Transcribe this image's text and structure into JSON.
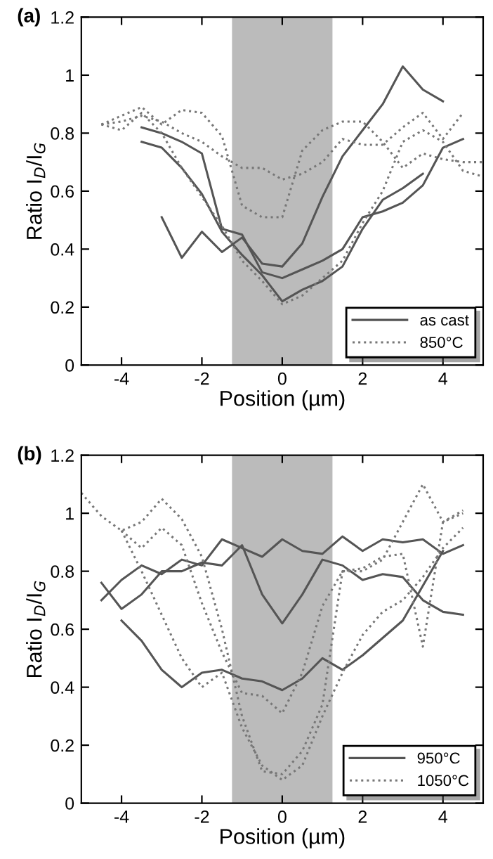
{
  "chart_data": [
    {
      "type": "line",
      "title": "(a)",
      "xlabel": "Position (µm)",
      "ylabel": "Ratio I$_{D}$/I$_{G}$",
      "xlim": [
        -5,
        5
      ],
      "ylim": [
        0,
        1.2
      ],
      "xticks": [
        -4,
        -2,
        0,
        2,
        4
      ],
      "yticks": [
        0,
        0.2,
        0.4,
        0.6,
        0.8,
        1,
        1.2
      ],
      "grid": false,
      "legend": "bottom right",
      "marker": "none",
      "bands": [
        {
          "axis": "x",
          "from": -1.25,
          "to": 1.25,
          "color": "#bbbbbb"
        }
      ],
      "series": [
        {
          "name": "as cast",
          "color": "#555555",
          "line_style": "solid",
          "x": [
            -3,
            -2.5,
            -2,
            -1.5,
            -1,
            -0.5,
            0,
            0.5,
            1,
            1.5,
            2,
            2.5,
            3,
            3.5,
            4
          ],
          "values": [
            0.51,
            0.37,
            0.46,
            0.39,
            0.44,
            0.35,
            0.34,
            0.42,
            0.58,
            0.72,
            0.81,
            0.9,
            1.03,
            0.95,
            0.91
          ]
        },
        {
          "color": "#555555",
          "line_style": "solid",
          "x": [
            -3.5,
            -3,
            -2.5,
            -2,
            -1.5,
            -1,
            -0.5,
            0,
            0.5,
            1,
            1.5,
            2,
            2.5,
            3,
            3.5,
            4,
            4.5
          ],
          "values": [
            0.82,
            0.8,
            0.77,
            0.73,
            0.47,
            0.45,
            0.32,
            0.3,
            0.33,
            0.36,
            0.4,
            0.51,
            0.53,
            0.56,
            0.62,
            0.75,
            0.78
          ]
        },
        {
          "color": "#555555",
          "line_style": "solid",
          "x": [
            -3.5,
            -3,
            -2.5,
            -2,
            -1.5,
            -1,
            -0.5,
            0,
            0.5,
            1,
            1.5,
            2,
            2.5,
            3,
            3.5
          ],
          "values": [
            0.77,
            0.75,
            0.68,
            0.59,
            0.46,
            0.38,
            0.31,
            0.22,
            0.26,
            0.29,
            0.34,
            0.47,
            0.57,
            0.61,
            0.66
          ]
        },
        {
          "name": "850°C",
          "color": "#777777",
          "line_style": "dotted",
          "x": [
            -4.5,
            -4,
            -3.5,
            -3,
            -2.5,
            -2,
            -1.5,
            -1,
            -0.5,
            0,
            0.5,
            1,
            1.5,
            2,
            2.5,
            3,
            3.5,
            4,
            4.5,
            5
          ],
          "values": [
            0.83,
            0.81,
            0.87,
            0.8,
            0.68,
            0.58,
            0.48,
            0.36,
            0.29,
            0.21,
            0.24,
            0.3,
            0.36,
            0.49,
            0.6,
            0.77,
            0.81,
            0.77,
            0.67,
            0.65
          ]
        },
        {
          "color": "#777777",
          "line_style": "dotted",
          "x": [
            -4.5,
            -4,
            -3.5,
            -3,
            -2.5,
            -2,
            -1.5,
            -1,
            -0.5,
            0,
            0.5,
            1,
            1.5,
            2,
            2.5,
            3,
            3.5,
            4,
            4.5,
            5
          ],
          "values": [
            0.83,
            0.86,
            0.89,
            0.83,
            0.88,
            0.87,
            0.79,
            0.55,
            0.51,
            0.51,
            0.74,
            0.81,
            0.84,
            0.84,
            0.77,
            0.68,
            0.73,
            0.71,
            0.7,
            0.7
          ]
        },
        {
          "color": "#777777",
          "line_style": "dotted",
          "x": [
            -4.5,
            -4,
            -3.5,
            -3,
            -2.5,
            -2,
            -1.5,
            -1,
            -0.5,
            0,
            0.5,
            1,
            1.5,
            2,
            2.5,
            3,
            3.5,
            4,
            4.5
          ],
          "values": [
            0.83,
            0.84,
            0.86,
            0.84,
            0.8,
            0.77,
            0.72,
            0.68,
            0.68,
            0.64,
            0.66,
            0.7,
            0.78,
            0.76,
            0.76,
            0.82,
            0.87,
            0.78,
            0.87
          ]
        }
      ]
    },
    {
      "type": "line",
      "title": "(b)",
      "xlabel": "Position (µm)",
      "ylabel": "Ratio I$_{D}$/I$_{G}$",
      "xlim": [
        -5,
        5
      ],
      "ylim": [
        0,
        1.2
      ],
      "xticks": [
        -4,
        -2,
        0,
        2,
        4
      ],
      "yticks": [
        0,
        0.2,
        0.4,
        0.6,
        0.8,
        1,
        1.2
      ],
      "grid": false,
      "legend": "bottom right",
      "marker": "none",
      "bands": [
        {
          "axis": "x",
          "from": -1.25,
          "to": 1.25,
          "color": "#bbbbbb"
        }
      ],
      "series": [
        {
          "name": "950°C",
          "color": "#555555",
          "line_style": "solid",
          "x": [
            -4.5,
            -4,
            -3.5,
            -3,
            -2.5,
            -2,
            -1.5,
            -1,
            -0.5,
            0,
            0.5,
            1,
            1.5,
            2,
            2.5,
            3,
            3.5,
            4,
            4.5
          ],
          "values": [
            0.76,
            0.67,
            0.72,
            0.8,
            0.8,
            0.83,
            0.82,
            0.89,
            0.72,
            0.62,
            0.72,
            0.84,
            0.82,
            0.77,
            0.79,
            0.78,
            0.7,
            0.66,
            0.65
          ]
        },
        {
          "color": "#555555",
          "line_style": "solid",
          "x": [
            -4.5,
            -4,
            -3.5,
            -3,
            -2.5,
            -2,
            -1.5,
            -1,
            -0.5,
            0,
            0.5,
            1,
            1.5,
            2,
            2.5,
            3,
            3.5,
            4,
            4.5
          ],
          "values": [
            0.7,
            0.77,
            0.82,
            0.79,
            0.84,
            0.82,
            0.91,
            0.88,
            0.85,
            0.91,
            0.87,
            0.86,
            0.92,
            0.87,
            0.91,
            0.9,
            0.91,
            0.86,
            0.89
          ]
        },
        {
          "color": "#555555",
          "line_style": "solid",
          "x": [
            -4,
            -3.5,
            -3,
            -2.5,
            -2,
            -1.5,
            -1,
            -0.5,
            0,
            0.5,
            1,
            1.5,
            2,
            2.5,
            3,
            3.5,
            4
          ],
          "values": [
            0.63,
            0.56,
            0.46,
            0.4,
            0.45,
            0.46,
            0.43,
            0.42,
            0.39,
            0.43,
            0.5,
            0.46,
            0.51,
            0.57,
            0.63,
            0.75,
            0.87
          ]
        },
        {
          "name": "1050°C",
          "color": "#777777",
          "line_style": "dotted",
          "x": [
            -5,
            -4.5,
            -4,
            -3.5,
            -3,
            -2.5,
            -2,
            -1.5,
            -1,
            -0.5,
            0,
            0.5,
            1,
            1.5,
            2,
            2.5,
            3,
            3.5,
            4,
            4.5
          ],
          "values": [
            1.07,
            0.99,
            0.94,
            0.97,
            1.05,
            0.98,
            0.85,
            0.6,
            0.3,
            0.11,
            0.1,
            0.18,
            0.34,
            0.8,
            0.81,
            0.85,
            0.86,
            0.54,
            0.97,
            1.0
          ]
        },
        {
          "color": "#777777",
          "line_style": "dotted",
          "x": [
            -4,
            -3.5,
            -3,
            -2.5,
            -2,
            -1.5,
            -1,
            -0.5,
            0,
            0.5,
            1,
            1.5,
            2,
            2.5,
            3,
            3.5,
            4,
            4.5
          ],
          "values": [
            0.94,
            0.88,
            0.95,
            0.89,
            0.69,
            0.52,
            0.38,
            0.37,
            0.31,
            0.45,
            0.68,
            0.8,
            0.8,
            0.84,
            0.97,
            1.1,
            0.97,
            1.01
          ]
        },
        {
          "color": "#777777",
          "line_style": "dotted",
          "x": [
            -4,
            -3.5,
            -3,
            -2.5,
            -2,
            -1.5,
            -1,
            -0.5,
            0,
            0.5,
            1,
            1.5,
            2,
            2.5,
            3,
            3.5,
            4,
            4.5
          ],
          "values": [
            0.94,
            0.8,
            0.65,
            0.5,
            0.4,
            0.45,
            0.26,
            0.13,
            0.08,
            0.13,
            0.3,
            0.45,
            0.58,
            0.66,
            0.7,
            0.78,
            0.88,
            0.95
          ]
        }
      ]
    }
  ]
}
